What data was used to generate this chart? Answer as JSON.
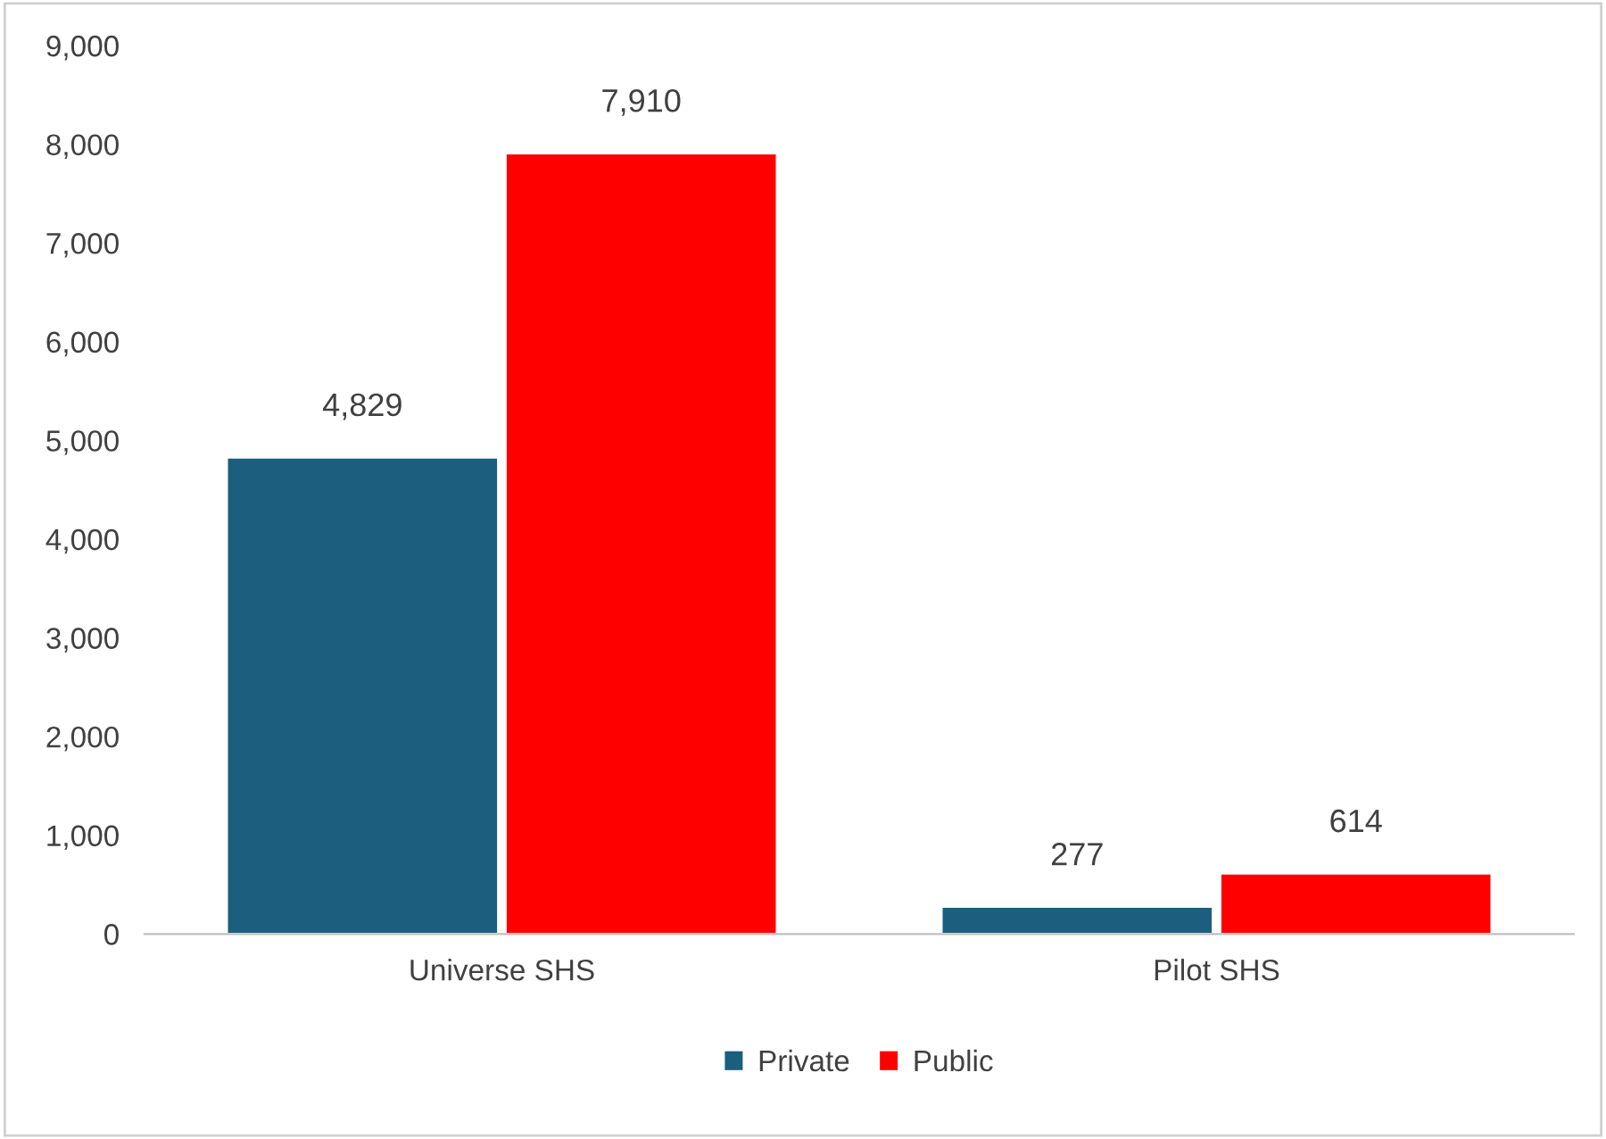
{
  "chart_data": {
    "type": "bar",
    "categories": [
      "Universe SHS",
      "Pilot SHS"
    ],
    "series": [
      {
        "name": "Private",
        "color": "#1b5e7e",
        "values": [
          4829,
          277
        ],
        "value_labels": [
          "4,829",
          "277"
        ]
      },
      {
        "name": "Public",
        "color": "#ff0000",
        "values": [
          7910,
          614
        ],
        "value_labels": [
          "7,910",
          "614"
        ]
      }
    ],
    "ylim": [
      0,
      9000
    ],
    "yticks": [
      {
        "value": 0,
        "label": "0"
      },
      {
        "value": 1000,
        "label": "1,000"
      },
      {
        "value": 2000,
        "label": "2,000"
      },
      {
        "value": 3000,
        "label": "3,000"
      },
      {
        "value": 4000,
        "label": "4,000"
      },
      {
        "value": 5000,
        "label": "5,000"
      },
      {
        "value": 6000,
        "label": "6,000"
      },
      {
        "value": 7000,
        "label": "7,000"
      },
      {
        "value": 8000,
        "label": "8,000"
      },
      {
        "value": 9000,
        "label": "9,000"
      }
    ],
    "grid": false,
    "legend": "bottom"
  }
}
